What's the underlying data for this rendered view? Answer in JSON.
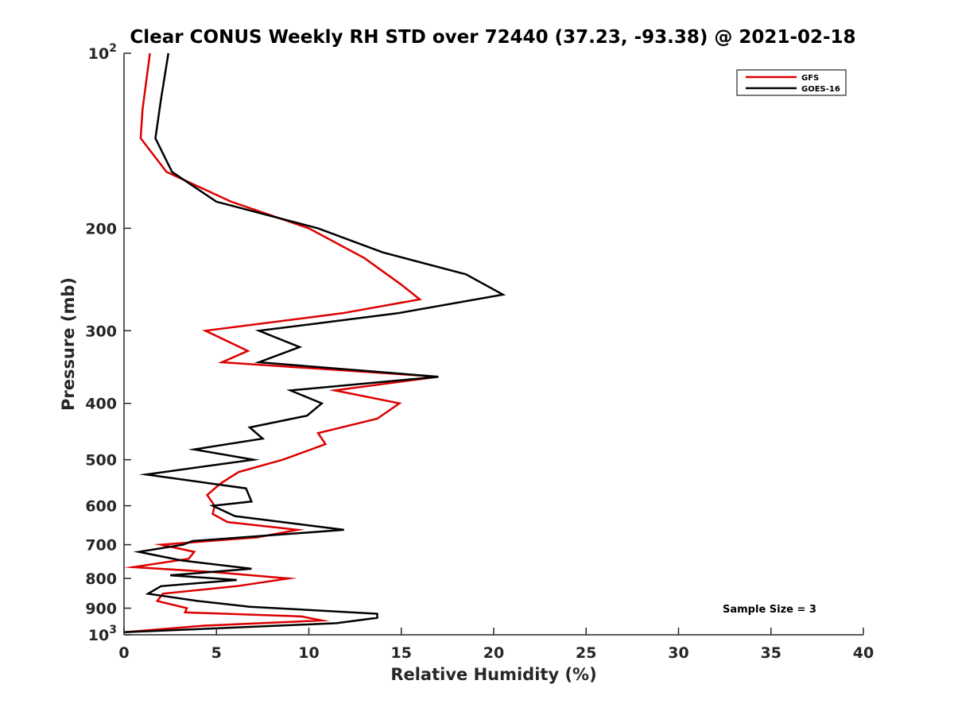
{
  "chart_data": {
    "type": "line",
    "title": "Clear CONUS Weekly RH STD over 72440 (37.23, -93.38) @ 2021-02-18",
    "xlabel": "Relative Humidity (%)",
    "ylabel": "Pressure (mb)",
    "xlim": [
      0,
      40
    ],
    "ylim": [
      100,
      1000
    ],
    "y_scale": "log",
    "y_reversed": true,
    "grid": false,
    "legend_position": "top-right",
    "x_ticks": [
      0,
      5,
      10,
      15,
      20,
      25,
      30,
      35,
      40
    ],
    "x_tick_labels": [
      "0",
      "5",
      "10",
      "15",
      "20",
      "25",
      "30",
      "35",
      "40"
    ],
    "y_ticks": [
      100,
      200,
      300,
      400,
      500,
      600,
      700,
      800,
      900,
      1000
    ],
    "y_tick_labels": [
      {
        "base": "10",
        "exp": "2"
      },
      {
        "base": "200",
        "exp": ""
      },
      {
        "base": "300",
        "exp": ""
      },
      {
        "base": "400",
        "exp": ""
      },
      {
        "base": "500",
        "exp": ""
      },
      {
        "base": "600",
        "exp": ""
      },
      {
        "base": "700",
        "exp": ""
      },
      {
        "base": "800",
        "exp": ""
      },
      {
        "base": "900",
        "exp": ""
      },
      {
        "base": "10",
        "exp": "3"
      }
    ],
    "annotation": "Sample Size = 3",
    "series": [
      {
        "name": "GFS",
        "color": "#dd0000",
        "points": [
          [
            1.4,
            100
          ],
          [
            1.0,
            125
          ],
          [
            0.9,
            140
          ],
          [
            2.3,
            160
          ],
          [
            5.8,
            180
          ],
          [
            10.0,
            200
          ],
          [
            13.0,
            225
          ],
          [
            15.0,
            250
          ],
          [
            16.0,
            265
          ],
          [
            11.8,
            280
          ],
          [
            4.4,
            300
          ],
          [
            6.7,
            325
          ],
          [
            5.3,
            340
          ],
          [
            17.0,
            360
          ],
          [
            11.4,
            380
          ],
          [
            14.9,
            400
          ],
          [
            13.7,
            425
          ],
          [
            10.5,
            450
          ],
          [
            10.9,
            470
          ],
          [
            8.6,
            500
          ],
          [
            6.2,
            525
          ],
          [
            5.2,
            550
          ],
          [
            4.5,
            575
          ],
          [
            4.9,
            600
          ],
          [
            4.8,
            620
          ],
          [
            5.6,
            640
          ],
          [
            9.4,
            660
          ],
          [
            7.2,
            680
          ],
          [
            2.0,
            700
          ],
          [
            3.8,
            720
          ],
          [
            3.5,
            740
          ],
          [
            0.5,
            765
          ],
          [
            4.8,
            780
          ],
          [
            8.9,
            800
          ],
          [
            6.1,
            825
          ],
          [
            2.1,
            850
          ],
          [
            1.8,
            875
          ],
          [
            3.4,
            900
          ],
          [
            3.3,
            915
          ],
          [
            9.6,
            930
          ],
          [
            10.7,
            945
          ],
          [
            4.2,
            965
          ],
          [
            0.0,
            990
          ]
        ]
      },
      {
        "name": "GOES-16",
        "color": "#000000",
        "points": [
          [
            2.4,
            100
          ],
          [
            2.0,
            120
          ],
          [
            1.7,
            140
          ],
          [
            2.6,
            160
          ],
          [
            5.0,
            180
          ],
          [
            10.5,
            200
          ],
          [
            14.0,
            220
          ],
          [
            18.5,
            240
          ],
          [
            20.5,
            260
          ],
          [
            14.8,
            280
          ],
          [
            7.3,
            300
          ],
          [
            9.5,
            320
          ],
          [
            7.3,
            340
          ],
          [
            17.0,
            360
          ],
          [
            9.0,
            380
          ],
          [
            10.7,
            400
          ],
          [
            9.9,
            420
          ],
          [
            6.8,
            440
          ],
          [
            7.5,
            460
          ],
          [
            3.8,
            480
          ],
          [
            7.0,
            500
          ],
          [
            1.2,
            530
          ],
          [
            6.6,
            560
          ],
          [
            6.9,
            590
          ],
          [
            4.8,
            600
          ],
          [
            6.0,
            625
          ],
          [
            11.9,
            660
          ],
          [
            3.7,
            690
          ],
          [
            3.2,
            700
          ],
          [
            0.8,
            720
          ],
          [
            3.1,
            745
          ],
          [
            6.9,
            770
          ],
          [
            2.5,
            790
          ],
          [
            6.1,
            805
          ],
          [
            2.0,
            825
          ],
          [
            1.3,
            850
          ],
          [
            4.0,
            875
          ],
          [
            6.8,
            895
          ],
          [
            13.7,
            920
          ],
          [
            13.7,
            935
          ],
          [
            11.5,
            955
          ],
          [
            0.0,
            990
          ]
        ]
      }
    ]
  }
}
